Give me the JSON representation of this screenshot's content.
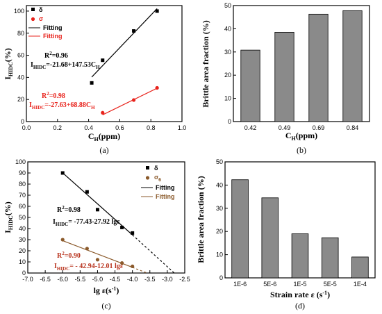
{
  "chart_data": [
    {
      "type": "scatter",
      "panel": "(a)",
      "xlabel": "C",
      "xlabel_sub": "H",
      "xlabel_suffix": "(ppm)",
      "ylabel": "I",
      "ylabel_sub": "HIDC",
      "ylabel_suffix": "(%)",
      "xlim": [
        0.0,
        1.0
      ],
      "ylim": [
        0,
        105
      ],
      "xticks": [
        0.0,
        0.2,
        0.4,
        0.6,
        0.8,
        1.0
      ],
      "xtick_labels": [
        "0.0",
        "0.2",
        "0.4",
        "0.6",
        "0.8",
        "1.0"
      ],
      "yticks": [
        0,
        20,
        40,
        60,
        80,
        100
      ],
      "ytick_labels": [
        "0",
        "20",
        "40",
        "60",
        "80",
        "100"
      ],
      "legend_position": "top-right",
      "series": [
        {
          "name": "δ",
          "marker": "square",
          "color": "#000000",
          "x": [
            0.42,
            0.49,
            0.69,
            0.84
          ],
          "y": [
            35,
            55.5,
            82,
            100
          ]
        },
        {
          "name": "σ",
          "marker": "circle",
          "color": "#e8231c",
          "x": [
            0.49,
            0.69,
            0.84
          ],
          "y": [
            8,
            19.5,
            30.5
          ]
        }
      ],
      "fits": [
        {
          "name": "Fitting",
          "color": "#000000",
          "x": [
            0.42,
            0.84
          ],
          "y": [
            40.3,
            102.2
          ]
        },
        {
          "name": "Fitting",
          "color": "#e8231c",
          "x": [
            0.49,
            0.84
          ],
          "y": [
            6.1,
            30.2
          ]
        }
      ],
      "annotations": [
        {
          "color": "#000000",
          "r2_label": "R",
          "r2_sup": "2",
          "r2_value": "=0.96",
          "eq_lhs": "I",
          "eq_sub": "HIDC",
          "eq_rhs": "=-21.68+147.53C",
          "eq_rhs_sub": "H"
        },
        {
          "color": "#e8231c",
          "r2_label": "R",
          "r2_sup": "2",
          "r2_value": "=0.98",
          "eq_lhs": "I",
          "eq_sub": "HIDC",
          "eq_rhs": "=-27.63+68.88C",
          "eq_rhs_sub": "H"
        }
      ]
    },
    {
      "type": "bar",
      "panel": "(b)",
      "xlabel": "C",
      "xlabel_sub": "H",
      "xlabel_suffix": "(ppm)",
      "ylabel": "Brittle area fraction (%)",
      "categories": [
        "0.42",
        "0.49",
        "0.69",
        "0.84"
      ],
      "values": [
        30.8,
        38.5,
        46.3,
        47.8
      ],
      "ylim": [
        0,
        50
      ],
      "yticks": [
        0,
        10,
        20,
        30,
        40,
        50
      ],
      "ytick_labels": [
        "0",
        "10",
        "20",
        "30",
        "40",
        "50"
      ],
      "bar_color": "#8a8a8a"
    },
    {
      "type": "scatter",
      "panel": "(c)",
      "xlabel": "lg ε(s",
      "xlabel_sup": "-1",
      "xlabel_suffix": ")",
      "ylabel": "I",
      "ylabel_sub": "HIDC",
      "ylabel_suffix": "(%)",
      "xlim": [
        -7.0,
        -2.5
      ],
      "ylim": [
        0,
        100
      ],
      "xticks": [
        -7.0,
        -6.5,
        -6.0,
        -5.5,
        -5.0,
        -4.5,
        -4.0,
        -3.5,
        -3.0,
        -2.5
      ],
      "xtick_labels": [
        "-7.0",
        "-6.5",
        "-6.0",
        "-5.5",
        "-5.0",
        "-4.5",
        "-4.0",
        "-3.5",
        "-3.0",
        "-2.5"
      ],
      "yticks": [
        0,
        10,
        20,
        30,
        40,
        50,
        60,
        70,
        80,
        90,
        100
      ],
      "ytick_labels": [
        "0",
        "10",
        "20",
        "30",
        "40",
        "50",
        "60",
        "70",
        "80",
        "90",
        "100"
      ],
      "legend_position": "top-right",
      "series": [
        {
          "name": "δ",
          "marker": "square",
          "color": "#000000",
          "x": [
            -6.0,
            -5.3,
            -5.0,
            -4.3,
            -4.0
          ],
          "y": [
            90,
            73,
            57,
            41,
            36
          ]
        },
        {
          "name": "σ",
          "name_sub": "6",
          "marker": "circle",
          "color": "#8b5a2b",
          "x": [
            -6.0,
            -5.3,
            -5.0,
            -4.3,
            -4.0
          ],
          "y": [
            30,
            22,
            12,
            9,
            6
          ]
        }
      ],
      "fits": [
        {
          "name": "Fitting",
          "color": "#000000",
          "x": [
            -6.0,
            -4.0
          ],
          "y": [
            90.1,
            34.3
          ],
          "dash_to": [
            -2.8,
            0
          ]
        },
        {
          "name": "Fitting",
          "color": "#8b5a2b",
          "x": [
            -6.0,
            -4.0
          ],
          "y": [
            29.1,
            5.1
          ],
          "dash_to": [
            -3.58,
            0
          ]
        }
      ],
      "annotations": [
        {
          "color": "#000000",
          "r2_label": "R",
          "r2_sup": "2",
          "r2_value": "=0.98",
          "eq_lhs": "I",
          "eq_sub": "HIDC",
          "eq_rhs": "= -77.43-27.92 lgε",
          "eq_rhs_sub": ""
        },
        {
          "color": "#b8321c",
          "r2_label": "R",
          "r2_sup": "2",
          "r2_value": "=0.90",
          "eq_lhs": "I",
          "eq_sub": "HIDC",
          "eq_rhs": "= - 42.94-12.01 lgε",
          "eq_rhs_sub": ""
        }
      ]
    },
    {
      "type": "bar",
      "panel": "(d)",
      "xlabel": "Strain rate ε (s",
      "xlabel_sup": "-1",
      "xlabel_suffix": ")",
      "ylabel": "Brittle area fraction  (%)",
      "categories": [
        "1E-6",
        "5E-6",
        "1E-5",
        "5E-5",
        "1E-4"
      ],
      "values": [
        42.3,
        34.5,
        19.0,
        17.3,
        9.0
      ],
      "ylim": [
        0,
        50
      ],
      "yticks": [
        0,
        10,
        20,
        30,
        40,
        50
      ],
      "ytick_labels": [
        "0",
        "10",
        "20",
        "30",
        "40",
        "50"
      ],
      "bar_color": "#8a8a8a"
    }
  ]
}
